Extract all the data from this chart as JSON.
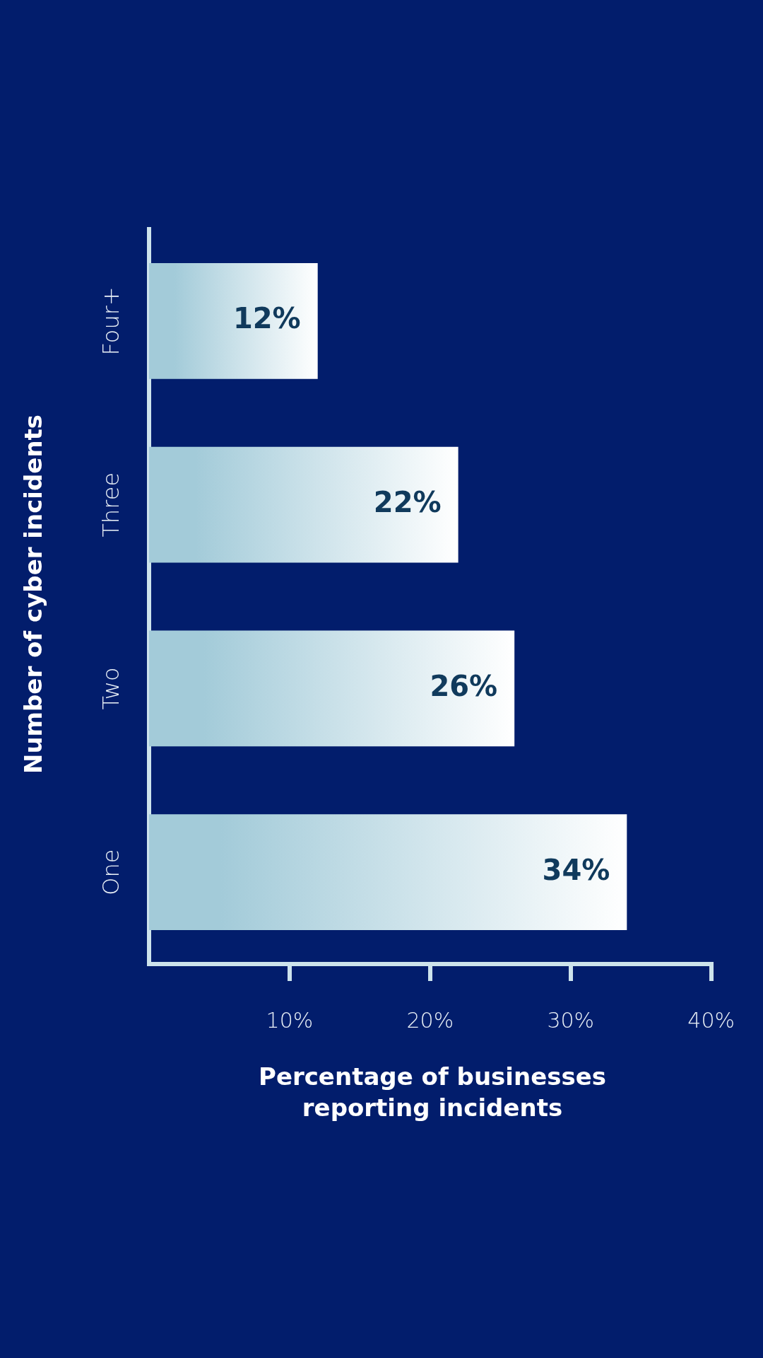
{
  "chart_data": {
    "type": "bar",
    "orientation": "horizontal",
    "xlabel": "Percentage of businesses reporting incidents",
    "ylabel": "Number of cyber incidents",
    "categories": [
      "Four+",
      "Three",
      "Two",
      "One"
    ],
    "series": [
      {
        "color": "#a3cbd9",
        "values": [
          12,
          22,
          26,
          34
        ],
        "value_labels": [
          "12%",
          "22%",
          "26%",
          "34%"
        ]
      }
    ],
    "xlim": [
      0,
      40
    ],
    "xticks": [
      {
        "value": 10,
        "label": "10%"
      },
      {
        "value": 20,
        "label": "20%"
      },
      {
        "value": 30,
        "label": "30%"
      },
      {
        "value": 40,
        "label": "40%"
      }
    ],
    "grid": false,
    "legend": false
  }
}
